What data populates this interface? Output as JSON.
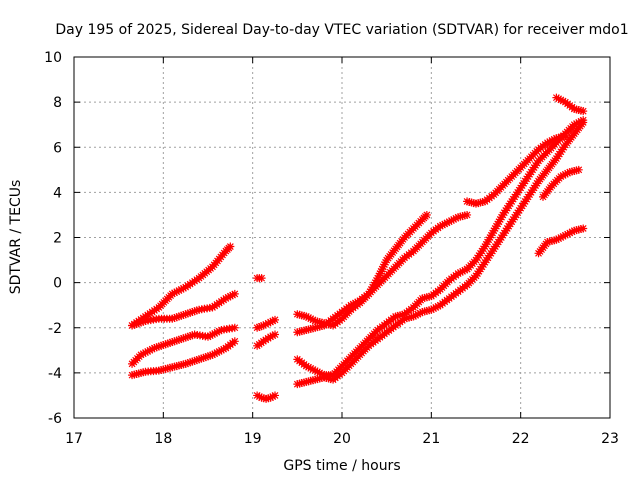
{
  "chart_data": {
    "type": "scatter",
    "title": "Day 195 of 2025, Sidereal Day-to-day VTEC variation (SDTVAR) for receiver mdo1",
    "xlabel": "GPS time / hours",
    "ylabel": "SDTVAR / TECUs",
    "xlim": [
      17,
      23
    ],
    "ylim": [
      -6,
      10
    ],
    "xticks": [
      "17",
      "18",
      "19",
      "20",
      "21",
      "22",
      "23"
    ],
    "yticks": [
      "-6",
      "-4",
      "-2",
      "0",
      "2",
      "4",
      "6",
      "8",
      "10"
    ],
    "grid": true,
    "marker": "cross",
    "color": "#ff0000",
    "series": [
      {
        "x": [
          17.65,
          17.8,
          17.95,
          18.1,
          18.25,
          18.4,
          18.55,
          18.7,
          18.75
        ],
        "y": [
          -1.9,
          -1.5,
          -1.1,
          -0.5,
          -0.2,
          0.2,
          0.7,
          1.4,
          1.6
        ]
      },
      {
        "x": [
          17.65,
          17.8,
          17.95,
          18.1,
          18.25,
          18.4,
          18.55,
          18.7,
          18.8
        ],
        "y": [
          -1.9,
          -1.7,
          -1.6,
          -1.6,
          -1.4,
          -1.2,
          -1.1,
          -0.7,
          -0.5
        ]
      },
      {
        "x": [
          17.65,
          17.75,
          17.9,
          18.05,
          18.2,
          18.35,
          18.5,
          18.65,
          18.8
        ],
        "y": [
          -3.6,
          -3.2,
          -2.9,
          -2.7,
          -2.5,
          -2.3,
          -2.4,
          -2.1,
          -2.0
        ]
      },
      {
        "x": [
          17.65,
          17.8,
          17.95,
          18.1,
          18.25,
          18.4,
          18.55,
          18.7,
          18.8
        ],
        "y": [
          -4.1,
          -3.95,
          -3.9,
          -3.75,
          -3.6,
          -3.4,
          -3.2,
          -2.9,
          -2.6
        ]
      },
      {
        "x": [
          19.05,
          19.1
        ],
        "y": [
          0.2,
          0.2
        ]
      },
      {
        "x": [
          19.05,
          19.12,
          19.2,
          19.25
        ],
        "y": [
          -2.0,
          -1.9,
          -1.75,
          -1.65
        ]
      },
      {
        "x": [
          19.05,
          19.12,
          19.2,
          19.25
        ],
        "y": [
          -2.8,
          -2.6,
          -2.4,
          -2.3
        ]
      },
      {
        "x": [
          19.05,
          19.1,
          19.15,
          19.2,
          19.25
        ],
        "y": [
          -5.0,
          -5.1,
          -5.15,
          -5.1,
          -5.0
        ]
      },
      {
        "x": [
          19.5,
          19.6,
          19.7,
          19.8,
          19.9,
          20.0,
          20.1,
          20.2,
          20.3,
          20.4,
          20.5,
          20.6,
          20.7,
          20.8,
          20.9,
          20.95
        ],
        "y": [
          -1.4,
          -1.5,
          -1.7,
          -1.8,
          -1.9,
          -1.6,
          -1.2,
          -0.9,
          -0.5,
          0.2,
          1.0,
          1.5,
          2.0,
          2.4,
          2.8,
          3.0
        ]
      },
      {
        "x": [
          19.5,
          19.6,
          19.7,
          19.8,
          19.9,
          20.0,
          20.1,
          20.2,
          20.3,
          20.4,
          20.5,
          20.6,
          20.7,
          20.8,
          20.9,
          21.0,
          21.1,
          21.2,
          21.3,
          21.4
        ],
        "y": [
          -2.2,
          -2.1,
          -2.0,
          -1.9,
          -1.6,
          -1.3,
          -1.0,
          -0.8,
          -0.5,
          -0.1,
          0.3,
          0.7,
          1.1,
          1.4,
          1.8,
          2.2,
          2.5,
          2.7,
          2.9,
          3.0
        ]
      },
      {
        "x": [
          19.5,
          19.6,
          19.7,
          19.8,
          19.9,
          20.0,
          20.1,
          20.2,
          20.3,
          20.4,
          20.5,
          20.6,
          20.7,
          20.8,
          20.9,
          21.0,
          21.1,
          21.2,
          21.3,
          21.4
        ],
        "y": [
          -3.4,
          -3.7,
          -3.9,
          -4.1,
          -4.1,
          -3.7,
          -3.3,
          -2.9,
          -2.5,
          -2.1,
          -1.8,
          -1.5,
          -1.4,
          -1.1,
          -0.7,
          -0.6,
          -0.3,
          0.1,
          0.4,
          0.6
        ]
      },
      {
        "x": [
          19.5,
          19.6,
          19.7,
          19.8,
          19.9,
          20.0,
          20.1,
          20.2,
          20.3,
          20.4,
          20.5,
          20.6,
          20.7,
          20.8,
          20.9,
          21.0,
          21.1,
          21.2,
          21.3,
          21.4
        ],
        "y": [
          -4.5,
          -4.4,
          -4.3,
          -4.2,
          -4.3,
          -4.0,
          -3.6,
          -3.2,
          -2.8,
          -2.5,
          -2.2,
          -1.9,
          -1.6,
          -1.5,
          -1.3,
          -1.2,
          -1.0,
          -0.7,
          -0.4,
          -0.1
        ]
      },
      {
        "x": [
          21.4,
          21.5,
          21.6,
          21.7,
          21.8,
          21.9,
          22.0,
          22.1,
          22.2,
          22.3,
          22.4,
          22.5,
          22.6,
          22.7
        ],
        "y": [
          0.6,
          1.0,
          1.6,
          2.3,
          3.0,
          3.6,
          4.2,
          4.8,
          5.4,
          5.8,
          6.2,
          6.6,
          7.0,
          7.2
        ]
      },
      {
        "x": [
          21.4,
          21.5,
          21.6,
          21.7,
          21.8,
          21.9,
          22.0,
          22.1,
          22.2,
          22.3,
          22.4,
          22.5,
          22.6,
          22.7
        ],
        "y": [
          -0.1,
          0.3,
          0.9,
          1.5,
          2.1,
          2.7,
          3.3,
          3.9,
          4.5,
          5.0,
          5.5,
          6.1,
          6.6,
          7.1
        ]
      },
      {
        "x": [
          21.4,
          21.5,
          21.6,
          21.7,
          21.8,
          21.9,
          22.0,
          22.1,
          22.2,
          22.3,
          22.4,
          22.5
        ],
        "y": [
          3.6,
          3.5,
          3.6,
          3.9,
          4.3,
          4.7,
          5.1,
          5.5,
          5.9,
          6.2,
          6.4,
          6.5
        ]
      },
      {
        "x": [
          22.25,
          22.35,
          22.45,
          22.55,
          22.65
        ],
        "y": [
          3.8,
          4.3,
          4.7,
          4.9,
          5.0
        ]
      },
      {
        "x": [
          22.4,
          22.5,
          22.6,
          22.7
        ],
        "y": [
          8.2,
          8.0,
          7.7,
          7.6
        ]
      },
      {
        "x": [
          22.2,
          22.3,
          22.4,
          22.5,
          22.6,
          22.7
        ],
        "y": [
          1.3,
          1.8,
          1.9,
          2.1,
          2.3,
          2.4
        ]
      }
    ]
  }
}
